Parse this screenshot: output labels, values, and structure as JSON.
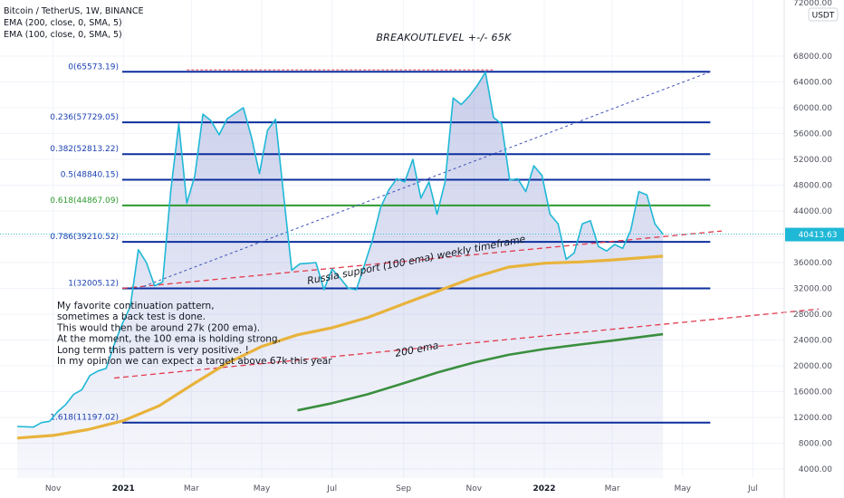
{
  "header": {
    "symbol_line": "Bitcoin / TetherUS, 1W, BINANCE",
    "indicator_1": "EMA (200, close, 0, SMA, 5)",
    "indicator_2": "EMA (100, close, 0, SMA, 5)"
  },
  "price_axis": {
    "currency_badge": "USDT",
    "current_price_label": "40413.63",
    "top_partial_label": "72000.00"
  },
  "annotations": {
    "breakout": "BREAKOUTLEVEL +-/- 65K",
    "support": "Russia support  (100 ema) weekly timeframe",
    "ema200": "200 ema",
    "notes": [
      "My favorite continuation pattern,",
      "sometimes a back test is done.",
      "This would then be around 27k (200 ema).",
      "At the moment, the 100 ema is holding strong.",
      "Long term this pattern is very positive. !",
      "In my opinion we can expect a target above 67k this year"
    ]
  },
  "colors": {
    "price_line": "#1fb8d6",
    "price_fill": "#3f51b5",
    "fib_line": "#0d2f9e",
    "fib_618": "#2e9a2e",
    "fib_label": "#1a3fb0",
    "ema100": "#e8b33c",
    "ema200": "#3a8f3f",
    "trend_red": "#e23b4e",
    "trend_blue": "#3f51b5",
    "price_badge": "#1fb8d6",
    "axis_text": "#50535e"
  },
  "chart_data": {
    "type": "line",
    "x_axis": {
      "ticks": [
        "Nov",
        "2021",
        "Mar",
        "May",
        "Jul",
        "Sep",
        "Nov",
        "2022",
        "Mar",
        "May",
        "Jul"
      ]
    },
    "y_axis": {
      "ylim": [
        2000,
        72500
      ],
      "ticks": [
        4000,
        8000,
        12000,
        16000,
        20000,
        24000,
        28000,
        32000,
        36000,
        40000,
        44000,
        48000,
        52000,
        56000,
        60000,
        64000,
        68000
      ]
    },
    "price": {
      "name": "",
      "points": [
        [
          "2020-10-01",
          10600
        ],
        [
          "2020-10-15",
          10500
        ],
        [
          "2020-10-22",
          11200
        ],
        [
          "2020-10-29",
          11400
        ],
        [
          "2020-11-05",
          12900
        ],
        [
          "2020-11-12",
          14000
        ],
        [
          "2020-11-19",
          15600
        ],
        [
          "2020-11-26",
          16300
        ],
        [
          "2020-12-03",
          18500
        ],
        [
          "2020-12-10",
          19200
        ],
        [
          "2020-12-17",
          19600
        ],
        [
          "2020-12-24",
          23300
        ],
        [
          "2020-12-31",
          26500
        ],
        [
          "2021-01-07",
          29200
        ],
        [
          "2021-01-14",
          38000
        ],
        [
          "2021-01-21",
          36000
        ],
        [
          "2021-01-28",
          32400
        ],
        [
          "2021-02-04",
          33000
        ],
        [
          "2021-02-11",
          47000
        ],
        [
          "2021-02-18",
          57500
        ],
        [
          "2021-02-25",
          45200
        ],
        [
          "2021-03-04",
          49500
        ],
        [
          "2021-03-11",
          59000
        ],
        [
          "2021-03-18",
          58000
        ],
        [
          "2021-03-25",
          55800
        ],
        [
          "2021-04-01",
          58300
        ],
        [
          "2021-04-15",
          60000
        ],
        [
          "2021-04-22",
          55500
        ],
        [
          "2021-04-29",
          49800
        ],
        [
          "2021-05-06",
          56500
        ],
        [
          "2021-05-13",
          58200
        ],
        [
          "2021-05-20",
          46300
        ],
        [
          "2021-05-27",
          34800
        ],
        [
          "2021-06-03",
          35800
        ],
        [
          "2021-06-17",
          36000
        ],
        [
          "2021-06-24",
          31800
        ],
        [
          "2021-07-01",
          35000
        ],
        [
          "2021-07-08",
          33600
        ],
        [
          "2021-07-15",
          32000
        ],
        [
          "2021-07-22",
          31800
        ],
        [
          "2021-07-29",
          35600
        ],
        [
          "2021-08-05",
          39500
        ],
        [
          "2021-08-12",
          44500
        ],
        [
          "2021-08-19",
          47200
        ],
        [
          "2021-08-26",
          49000
        ],
        [
          "2021-09-02",
          48500
        ],
        [
          "2021-09-09",
          52000
        ],
        [
          "2021-09-16",
          46000
        ],
        [
          "2021-09-23",
          48500
        ],
        [
          "2021-09-30",
          43500
        ],
        [
          "2021-10-07",
          48500
        ],
        [
          "2021-10-14",
          61500
        ],
        [
          "2021-10-21",
          60500
        ],
        [
          "2021-10-28",
          61800
        ],
        [
          "2021-11-04",
          63500
        ],
        [
          "2021-11-11",
          65500
        ],
        [
          "2021-11-18",
          58500
        ],
        [
          "2021-11-25",
          57500
        ],
        [
          "2021-12-02",
          48800
        ],
        [
          "2021-12-09",
          49000
        ],
        [
          "2021-12-16",
          47000
        ],
        [
          "2021-12-23",
          51000
        ],
        [
          "2021-12-30",
          49500
        ],
        [
          "2022-01-06",
          43500
        ],
        [
          "2022-01-13",
          42000
        ],
        [
          "2022-01-20",
          36500
        ],
        [
          "2022-01-27",
          37500
        ],
        [
          "2022-02-03",
          42000
        ],
        [
          "2022-02-10",
          42500
        ],
        [
          "2022-02-17",
          38500
        ],
        [
          "2022-02-24",
          37800
        ],
        [
          "2022-03-03",
          38800
        ],
        [
          "2022-03-10",
          38200
        ],
        [
          "2022-03-17",
          41000
        ],
        [
          "2022-03-24",
          47000
        ],
        [
          "2022-03-31",
          46500
        ],
        [
          "2022-04-07",
          42000
        ],
        [
          "2022-04-14",
          40400
        ]
      ]
    },
    "ema100": {
      "name": "",
      "points": [
        [
          "2020-10-01",
          8800
        ],
        [
          "2020-11-01",
          9200
        ],
        [
          "2020-12-01",
          10100
        ],
        [
          "2021-01-01",
          11500
        ],
        [
          "2021-02-01",
          13800
        ],
        [
          "2021-03-01",
          17000
        ],
        [
          "2021-04-01",
          20400
        ],
        [
          "2021-05-01",
          23000
        ],
        [
          "2021-06-01",
          24800
        ],
        [
          "2021-07-01",
          25900
        ],
        [
          "2021-08-01",
          27500
        ],
        [
          "2021-09-01",
          29600
        ],
        [
          "2021-10-01",
          31600
        ],
        [
          "2021-11-01",
          33700
        ],
        [
          "2021-12-01",
          35300
        ],
        [
          "2022-01-01",
          35900
        ],
        [
          "2022-02-01",
          36100
        ],
        [
          "2022-03-01",
          36400
        ],
        [
          "2022-04-14",
          37000
        ]
      ]
    },
    "ema200": {
      "name": "",
      "points": [
        [
          "2021-06-01",
          13100
        ],
        [
          "2021-07-01",
          14200
        ],
        [
          "2021-08-01",
          15600
        ],
        [
          "2021-09-01",
          17300
        ],
        [
          "2021-10-01",
          19000
        ],
        [
          "2021-11-01",
          20500
        ],
        [
          "2021-12-01",
          21700
        ],
        [
          "2022-01-01",
          22600
        ],
        [
          "2022-02-01",
          23300
        ],
        [
          "2022-03-01",
          23900
        ],
        [
          "2022-04-14",
          24900
        ]
      ]
    },
    "fib_levels": [
      {
        "label": "0(65573.19)",
        "value": 65573.19
      },
      {
        "label": "0.236(57729.05)",
        "value": 57729.05
      },
      {
        "label": "0.382(52813.22)",
        "value": 52813.22
      },
      {
        "label": "0.5(48840.15)",
        "value": 48840.15
      },
      {
        "label": "0.618(44867.09)",
        "value": 44867.09
      },
      {
        "label": "0.786(39210.52)",
        "value": 39210.52
      },
      {
        "label": "1(32005.12)",
        "value": 32005.12
      },
      {
        "label": "1.618(11197.02)",
        "value": 11197.02
      }
    ],
    "fib_range": [
      "2020-12-31",
      "2022-05-25"
    ],
    "trendlines": {
      "red_upper": [
        [
          "2020-12-31",
          32005
        ],
        [
          "2022-06-04",
          40900
        ]
      ],
      "red_lower": [
        [
          "2020-12-24",
          18100
        ],
        [
          "2022-08-27",
          28800
        ]
      ],
      "blue_diagonal": [
        [
          "2021-01-14",
          32005
        ],
        [
          "2022-05-25",
          65573
        ]
      ],
      "top_marker": [
        [
          "2021-02-25",
          65600
        ],
        [
          "2021-11-18",
          65600
        ]
      ]
    },
    "current_price": 40413.63
  }
}
